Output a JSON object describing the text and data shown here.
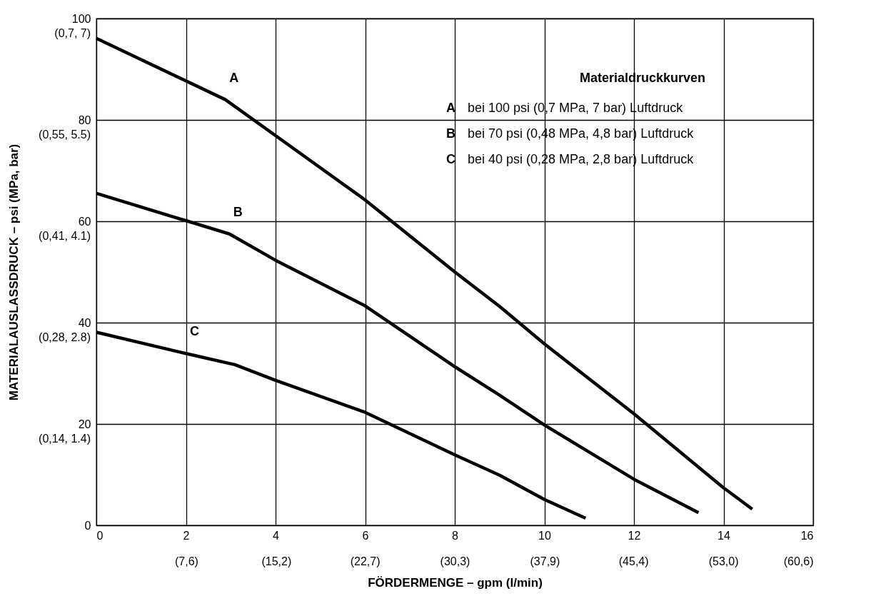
{
  "chart_data": {
    "type": "line",
    "xlabel": "FÖRDERMENGE – gpm (l/min)",
    "ylabel": "MATERIALAUSLASSDRUCK – psi (MPa, bar)",
    "legend_title": "Materialdruckkurven",
    "annotations": [
      "A bei 100 psi (0,7 MPa, 7 bar) Luftdruck",
      "B bei 70 psi (0,48 MPa, 4,8 bar) Luftdruck",
      "C bei 40 psi (0,28 MPa, 2,8 bar) Luftdruck",
      "(0,14, 1.4)",
      "(0,28, 2.8)",
      "(0,41, 4.1)",
      "(0,55, 5.5)",
      "(0,7, 7)"
    ],
    "series": [
      {
        "name": "A",
        "color": "#000000",
        "x": [
          0,
          2.88,
          4,
          6,
          8,
          9,
          10,
          12,
          14,
          14.64
        ],
        "values": [
          96.1,
          84.0,
          76.9,
          64.2,
          50.0,
          43.2,
          35.8,
          22.0,
          7.4,
          3.2
        ]
      },
      {
        "name": "B",
        "color": "#000000",
        "x": [
          0,
          2.97,
          4,
          6,
          8,
          9,
          10,
          12,
          13.44
        ],
        "values": [
          65.5,
          57.5,
          52.3,
          43.3,
          31.3,
          25.7,
          19.8,
          9.1,
          2.5
        ]
      },
      {
        "name": "C",
        "color": "#000000",
        "x": [
          0,
          2,
          3.09,
          4,
          6,
          8,
          9,
          10,
          10.92
        ],
        "values": [
          38.1,
          33.9,
          31.7,
          28.6,
          22.3,
          13.9,
          9.9,
          5.1,
          1.4
        ]
      }
    ],
    "xlim": [
      0,
      16
    ],
    "xticks": [
      0,
      2,
      4,
      6,
      8,
      10,
      12,
      14,
      16
    ],
    "x2lim": [
      0,
      60.6
    ],
    "x2ticks": [
      {
        "value": 7.6,
        "label": "(7,6)"
      },
      {
        "value": 15.2,
        "label": "(15,2)"
      },
      {
        "value": 22.7,
        "label": "(22,7)"
      },
      {
        "value": 30.3,
        "label": "(30,3)"
      },
      {
        "value": 37.9,
        "label": "(37,9)"
      },
      {
        "value": 45.4,
        "label": "(45,4)"
      },
      {
        "value": 53.0,
        "label": "(53,0)"
      },
      {
        "value": 60.6,
        "label": "(60,6)"
      }
    ],
    "ylim": [
      0,
      100
    ],
    "yticks": [
      0,
      20,
      40,
      60,
      80,
      100
    ],
    "grid": true,
    "marker": "none",
    "line_style": "solid"
  }
}
